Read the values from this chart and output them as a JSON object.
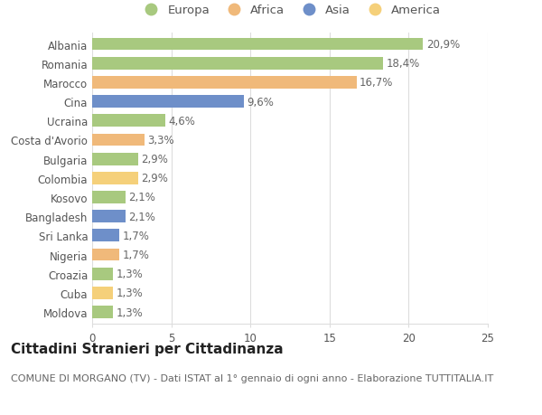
{
  "countries": [
    "Albania",
    "Romania",
    "Marocco",
    "Cina",
    "Ucraina",
    "Costa d'Avorio",
    "Bulgaria",
    "Colombia",
    "Kosovo",
    "Bangladesh",
    "Sri Lanka",
    "Nigeria",
    "Croazia",
    "Cuba",
    "Moldova"
  ],
  "values": [
    20.9,
    18.4,
    16.7,
    9.6,
    4.6,
    3.3,
    2.9,
    2.9,
    2.1,
    2.1,
    1.7,
    1.7,
    1.3,
    1.3,
    1.3
  ],
  "labels": [
    "20,9%",
    "18,4%",
    "16,7%",
    "9,6%",
    "4,6%",
    "3,3%",
    "2,9%",
    "2,9%",
    "2,1%",
    "2,1%",
    "1,7%",
    "1,7%",
    "1,3%",
    "1,3%",
    "1,3%"
  ],
  "continents": [
    "Europa",
    "Europa",
    "Africa",
    "Asia",
    "Europa",
    "Africa",
    "Europa",
    "America",
    "Europa",
    "Asia",
    "Asia",
    "Africa",
    "Europa",
    "America",
    "Europa"
  ],
  "colors": {
    "Europa": "#a8c97f",
    "Africa": "#f0b97a",
    "Asia": "#6e8fc9",
    "America": "#f5d07a"
  },
  "legend_order": [
    "Europa",
    "Africa",
    "Asia",
    "America"
  ],
  "title": "Cittadini Stranieri per Cittadinanza",
  "subtitle": "COMUNE DI MORGANO (TV) - Dati ISTAT al 1° gennaio di ogni anno - Elaborazione TUTTITALIA.IT",
  "xlim": [
    0,
    25
  ],
  "xticks": [
    0,
    5,
    10,
    15,
    20,
    25
  ],
  "background_color": "#ffffff",
  "grid_color": "#dddddd",
  "bar_height": 0.65,
  "title_fontsize": 11,
  "subtitle_fontsize": 8,
  "label_fontsize": 8.5,
  "tick_fontsize": 8.5,
  "legend_fontsize": 9.5
}
